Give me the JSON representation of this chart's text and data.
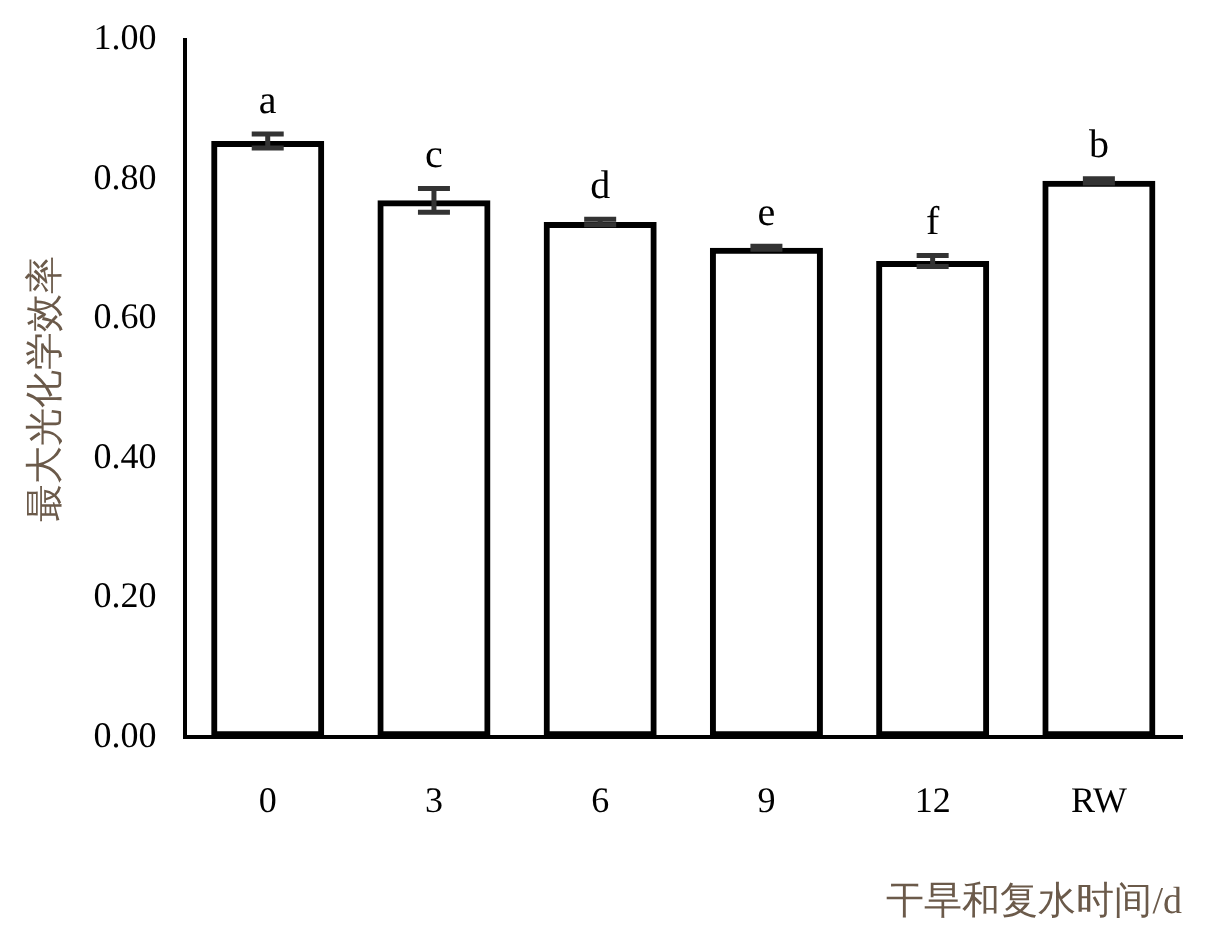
{
  "chart_data": {
    "type": "bar",
    "xlabel": "干旱和复水时间/d",
    "ylabel": "最大光化学效率",
    "categories": [
      "0",
      "3",
      "6",
      "9",
      "12",
      "RW"
    ],
    "values": [
      0.855,
      0.77,
      0.739,
      0.702,
      0.683,
      0.798
    ],
    "errors": [
      0.01,
      0.017,
      0.004,
      0.002,
      0.008,
      0.003
    ],
    "color": "#000000",
    "ylim": [
      0,
      1
    ],
    "yticks": [
      {
        "value": 0,
        "label": "0.00"
      },
      {
        "value": 0.2,
        "label": "0.20"
      },
      {
        "value": 0.4,
        "label": "0.40"
      },
      {
        "value": 0.6,
        "label": "0.60"
      },
      {
        "value": 0.8,
        "label": "0.80"
      },
      {
        "value": 1,
        "label": "1.00"
      }
    ],
    "grid": false,
    "legend": false,
    "annotations": [
      {
        "text": "a",
        "x": "0",
        "y": 0.865
      },
      {
        "text": "c",
        "x": "3",
        "y": 0.787
      },
      {
        "text": "d",
        "x": "6",
        "y": 0.743
      },
      {
        "text": "e",
        "x": "9",
        "y": 0.704
      },
      {
        "text": "f",
        "x": "12",
        "y": 0.691
      },
      {
        "text": "b",
        "x": "RW",
        "y": 0.801
      }
    ]
  }
}
